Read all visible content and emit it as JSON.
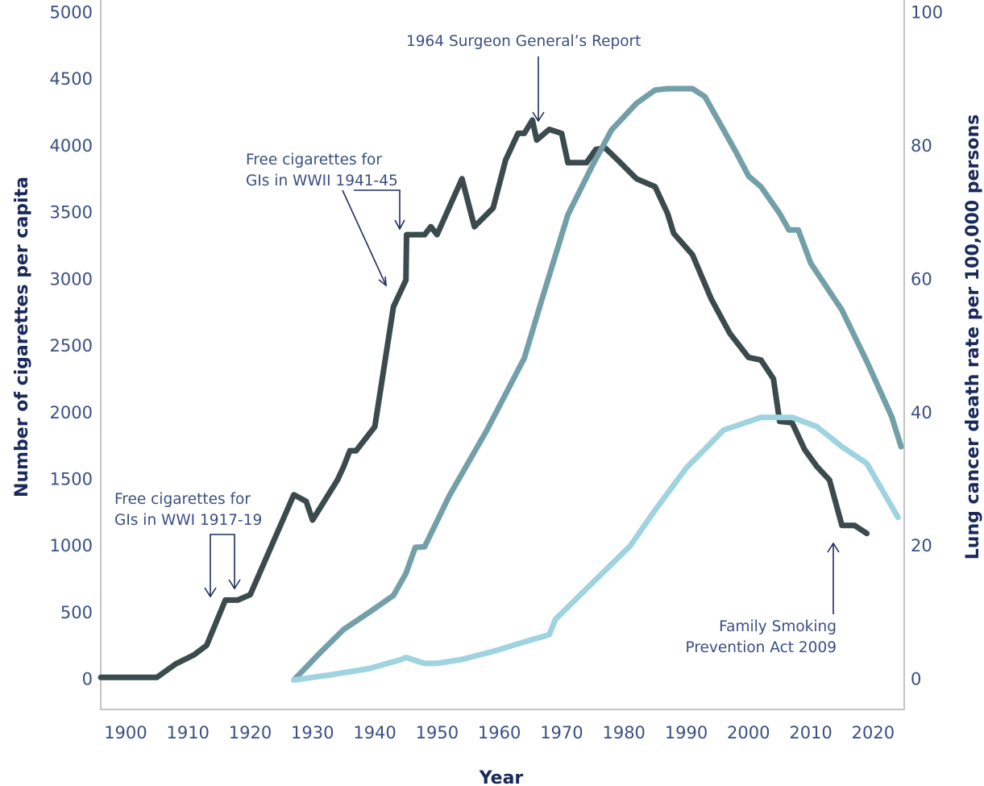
{
  "chart_data": {
    "type": "line",
    "title": "",
    "xlabel": "Year",
    "ylabel_left": "Number of cigarettes per capita",
    "ylabel_right": "Lung cancer death rate per 100,000 persons",
    "xlim": [
      1896,
      2025
    ],
    "ylim_left": [
      -220,
      5100
    ],
    "ylim_right": [
      -4.4,
      102
    ],
    "x_ticks": [
      1900,
      1910,
      1920,
      1930,
      1940,
      1950,
      1960,
      1970,
      1980,
      1990,
      2000,
      2010,
      2020
    ],
    "y_ticks_left": [
      0,
      500,
      1000,
      1500,
      2000,
      2500,
      3000,
      3500,
      4000,
      4500,
      5000
    ],
    "y_ticks_right": [
      0,
      20,
      40,
      60,
      80,
      100
    ],
    "grid": false,
    "legend": "none",
    "series": [
      {
        "axis": "left",
        "color": "#3b4a4d",
        "points": [
          [
            1896,
            20
          ],
          [
            1905,
            20
          ],
          [
            1908,
            120
          ],
          [
            1911,
            190
          ],
          [
            1913,
            260
          ],
          [
            1916,
            600
          ],
          [
            1918,
            600
          ],
          [
            1920,
            640
          ],
          [
            1927,
            1390
          ],
          [
            1929,
            1340
          ],
          [
            1930,
            1200
          ],
          [
            1934,
            1500
          ],
          [
            1935,
            1600
          ],
          [
            1936,
            1720
          ],
          [
            1937,
            1720
          ],
          [
            1938,
            1780
          ],
          [
            1940,
            1900
          ],
          [
            1942,
            2500
          ],
          [
            1943,
            2800
          ],
          [
            1945,
            3000
          ],
          [
            1945.1,
            3340
          ],
          [
            1948,
            3340
          ],
          [
            1949,
            3400
          ],
          [
            1950,
            3340
          ],
          [
            1954,
            3760
          ],
          [
            1956,
            3400
          ],
          [
            1959,
            3540
          ],
          [
            1961,
            3900
          ],
          [
            1963,
            4100
          ],
          [
            1964,
            4100
          ],
          [
            1965.3,
            4200
          ],
          [
            1966,
            4050
          ],
          [
            1968,
            4130
          ],
          [
            1970,
            4100
          ],
          [
            1971,
            3880
          ],
          [
            1974,
            3880
          ],
          [
            1975.5,
            3980
          ],
          [
            1977,
            3990
          ],
          [
            1979,
            3900
          ],
          [
            1982,
            3760
          ],
          [
            1985,
            3700
          ],
          [
            1987,
            3500
          ],
          [
            1988,
            3350
          ],
          [
            1991,
            3190
          ],
          [
            1994,
            2860
          ],
          [
            1997,
            2600
          ],
          [
            2000,
            2420
          ],
          [
            2002,
            2400
          ],
          [
            2004,
            2260
          ],
          [
            2005,
            1940
          ],
          [
            2007,
            1930
          ],
          [
            2009,
            1730
          ],
          [
            2011,
            1600
          ],
          [
            2013,
            1500
          ],
          [
            2015,
            1160
          ],
          [
            2017,
            1160
          ],
          [
            2019,
            1100
          ]
        ]
      },
      {
        "axis": "right",
        "color": "#73a0a8",
        "points": [
          [
            1927,
            0
          ],
          [
            1931,
            3.9
          ],
          [
            1935,
            7.6
          ],
          [
            1939,
            10.1
          ],
          [
            1943,
            12.7
          ],
          [
            1945,
            16
          ],
          [
            1946.5,
            19.9
          ],
          [
            1948,
            20
          ],
          [
            1952,
            27.7
          ],
          [
            1958,
            37.5
          ],
          [
            1964,
            48.3
          ],
          [
            1967,
            57.6
          ],
          [
            1971,
            69.8
          ],
          [
            1975,
            77.3
          ],
          [
            1978,
            82.5
          ],
          [
            1982,
            86.5
          ],
          [
            1985,
            88.5
          ],
          [
            1987,
            88.7
          ],
          [
            1991,
            88.7
          ],
          [
            1993,
            87.5
          ],
          [
            1998,
            79.2
          ],
          [
            2000,
            75.6
          ],
          [
            2002,
            74
          ],
          [
            2005,
            70
          ],
          [
            2006.5,
            67.5
          ],
          [
            2008,
            67.5
          ],
          [
            2010,
            62.5
          ],
          [
            2015,
            55.5
          ],
          [
            2019,
            47.8
          ],
          [
            2023,
            39.5
          ],
          [
            2024.5,
            35
          ]
        ]
      },
      {
        "axis": "right",
        "color": "#9fd3e0",
        "points": [
          [
            1927,
            0
          ],
          [
            1933,
            0.8
          ],
          [
            1939,
            1.7
          ],
          [
            1944,
            3
          ],
          [
            1945,
            3.4
          ],
          [
            1946,
            3.1
          ],
          [
            1948,
            2.5
          ],
          [
            1950,
            2.5
          ],
          [
            1954,
            3.1
          ],
          [
            1959,
            4.3
          ],
          [
            1965,
            6
          ],
          [
            1968,
            6.8
          ],
          [
            1969,
            9.1
          ],
          [
            1974,
            13.7
          ],
          [
            1979,
            18.3
          ],
          [
            1981,
            20.1
          ],
          [
            1985,
            25.5
          ],
          [
            1990,
            31.8
          ],
          [
            1996,
            37.5
          ],
          [
            2002,
            39.4
          ],
          [
            2007,
            39.4
          ],
          [
            2011,
            38
          ],
          [
            2015,
            35
          ],
          [
            2019,
            32.5
          ],
          [
            2024,
            24.4
          ]
        ]
      }
    ],
    "annotations": [
      {
        "text": "Free  cigarettes for",
        "text2": "GIs in WWI 1917-19"
      },
      {
        "text": "Free cigarettes for",
        "text2": "GIs in WWII 1941-45"
      },
      {
        "text": "1964 Surgeon General’s Report"
      },
      {
        "text": "Family Smoking",
        "text2": "Prevention Act 2009"
      }
    ]
  }
}
